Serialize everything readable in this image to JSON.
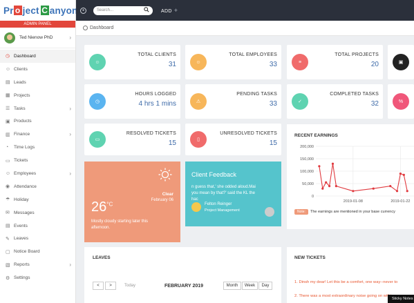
{
  "logo": {
    "text_before": "Pr",
    "letter_o": "o",
    "text_mid": "ject",
    "letter_c": "C",
    "text_after": "anyon"
  },
  "sidebar": {
    "panel_label": "ADMIN PANEL",
    "user_name": "Ted Nienow PhD",
    "items": [
      {
        "label": "Dashboard",
        "icon": "dashboard-icon"
      },
      {
        "label": "Clients",
        "icon": "clients-icon"
      },
      {
        "label": "Leads",
        "icon": "leads-icon"
      },
      {
        "label": "Projects",
        "icon": "projects-icon"
      },
      {
        "label": "Tasks",
        "icon": "tasks-icon"
      },
      {
        "label": "Products",
        "icon": "products-icon"
      },
      {
        "label": "Finance",
        "icon": "finance-icon"
      },
      {
        "label": "Time Logs",
        "icon": "timelogs-icon"
      },
      {
        "label": "Tickets",
        "icon": "tickets-icon"
      },
      {
        "label": "Employees",
        "icon": "employees-icon"
      },
      {
        "label": "Attendance",
        "icon": "attendance-icon"
      },
      {
        "label": "Holiday",
        "icon": "holiday-icon"
      },
      {
        "label": "Messages",
        "icon": "messages-icon"
      },
      {
        "label": "Events",
        "icon": "events-icon"
      },
      {
        "label": "Leaves",
        "icon": "leaves-icon"
      },
      {
        "label": "Notice Board",
        "icon": "noticeboard-icon"
      },
      {
        "label": "Reports",
        "icon": "reports-icon"
      },
      {
        "label": "Settings",
        "icon": "settings-icon"
      }
    ]
  },
  "topbar": {
    "search_placeholder": "Search...",
    "add_label": "ADD"
  },
  "breadcrumb": "Dashboard",
  "stats": {
    "total_clients": {
      "label": "TOTAL CLIENTS",
      "value": "31"
    },
    "total_employees": {
      "label": "TOTAL EMPLOYEES",
      "value": "33"
    },
    "total_projects": {
      "label": "TOTAL PROJECTS",
      "value": "20"
    },
    "hours_logged": {
      "label": "HOURS LOGGED",
      "value": "4 hrs 1 mins"
    },
    "pending_tasks": {
      "label": "PENDING TASKS",
      "value": "33"
    },
    "completed_tasks": {
      "label": "COMPLETED TASKS",
      "value": "32"
    },
    "resolved_tickets": {
      "label": "RESOLVED TICKETS",
      "value": "15"
    },
    "unresolved_tickets": {
      "label": "UNRESOLVED TICKETS",
      "value": "15"
    }
  },
  "weather": {
    "condition": "Clear",
    "date": "February 06",
    "temperature": "26",
    "unit": "°C",
    "description": "Mostly cloudy starting later this afternoon."
  },
  "feedback": {
    "title": "Client Feedback",
    "quote_line1": "n guess that,' she odded aloud.Mai",
    "quote_line2": "you mean by that?' said the KL the",
    "quote_line3": "hac",
    "name": "Felton Reinger",
    "role": "Project Management"
  },
  "earnings": {
    "title": "RECENT EARNINGS",
    "note_badge": "Note:",
    "note_text": "The earnings are mentioned in your base currency"
  },
  "chart_data": {
    "type": "line",
    "x": [
      "2018-12-29",
      "2018-12-30",
      "2018-12-31",
      "2019-01-01",
      "2019-01-02",
      "2019-01-03",
      "2019-01-08",
      "2019-01-14",
      "2019-01-19",
      "2019-01-21",
      "2019-01-22",
      "2019-01-23",
      "2019-01-24"
    ],
    "y": [
      120000,
      30000,
      55000,
      40000,
      130000,
      40000,
      20000,
      30000,
      40000,
      20000,
      90000,
      85000,
      20000
    ],
    "xticks": [
      "2019-01-08",
      "2019-01-22"
    ],
    "yticks": [
      "0",
      "50,000",
      "100,000",
      "150,000",
      "200,000"
    ],
    "ylim": [
      0,
      200000
    ],
    "grid": true,
    "color": "#e0393e"
  },
  "leaves": {
    "title": "LEAVES",
    "prev": "<",
    "next": ">",
    "today": "Today",
    "month": "FEBRUARY 2019",
    "views": [
      "Month",
      "Week",
      "Day"
    ]
  },
  "tickets": {
    "title": "NEW TICKETS",
    "items": [
      "1. Dinsh my dear! Let this be a comfort, one way--never to",
      "2. There was a most extraordinary noise going on within"
    ]
  },
  "sticky": "Sticky Notes",
  "colors": {
    "accent": "#e2463b",
    "topbar": "#2b303b",
    "value": "#3d6aa8",
    "weather": "#ef9a7a",
    "feedback": "#55c4cc"
  }
}
